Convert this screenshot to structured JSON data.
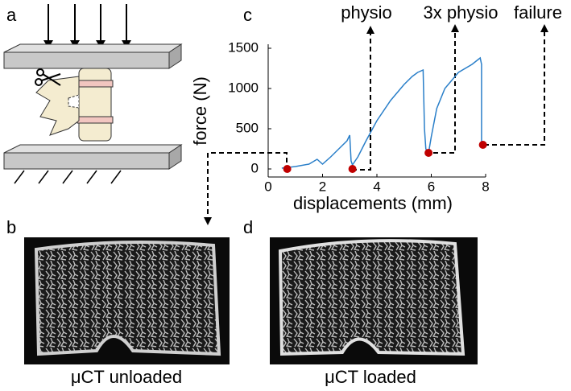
{
  "panels": [
    "a",
    "b",
    "c",
    "d"
  ],
  "captions": [
    "μCT unloaded",
    "μCT loaded"
  ],
  "chart_data": {
    "type": "line",
    "x_label": "displacements (mm)",
    "y_label": "force (N)",
    "annotations": [
      "physio",
      "3x physio",
      "failure"
    ],
    "color": "#2a7fc9",
    "x": [
      0.5,
      1.0,
      1.5,
      1.8,
      2.0,
      2.3,
      2.6,
      2.9,
      3.0,
      3.05,
      3.1,
      3.3,
      3.6,
      4.0,
      4.5,
      5.0,
      5.3,
      5.5,
      5.7,
      5.75,
      5.8,
      5.9,
      6.0,
      6.2,
      6.5,
      7.0,
      7.5,
      7.8,
      7.85,
      7.85
    ],
    "values": [
      10,
      30,
      60,
      120,
      60,
      150,
      250,
      350,
      420,
      100,
      50,
      150,
      350,
      600,
      850,
      1050,
      1150,
      1200,
      1230,
      500,
      250,
      200,
      400,
      750,
      1000,
      1200,
      1300,
      1380,
      1300,
      300
    ],
    "points": {
      "color": "#c00000",
      "x": [
        0.7,
        3.1,
        5.9,
        7.9
      ],
      "y": [
        0,
        0,
        200,
        300
      ]
    },
    "xlim": [
      0,
      8
    ],
    "ylim": [
      -100,
      1550
    ],
    "xticks": [
      0,
      2,
      4,
      6,
      8
    ],
    "yticks": [
      0,
      500,
      1000,
      1500
    ]
  }
}
